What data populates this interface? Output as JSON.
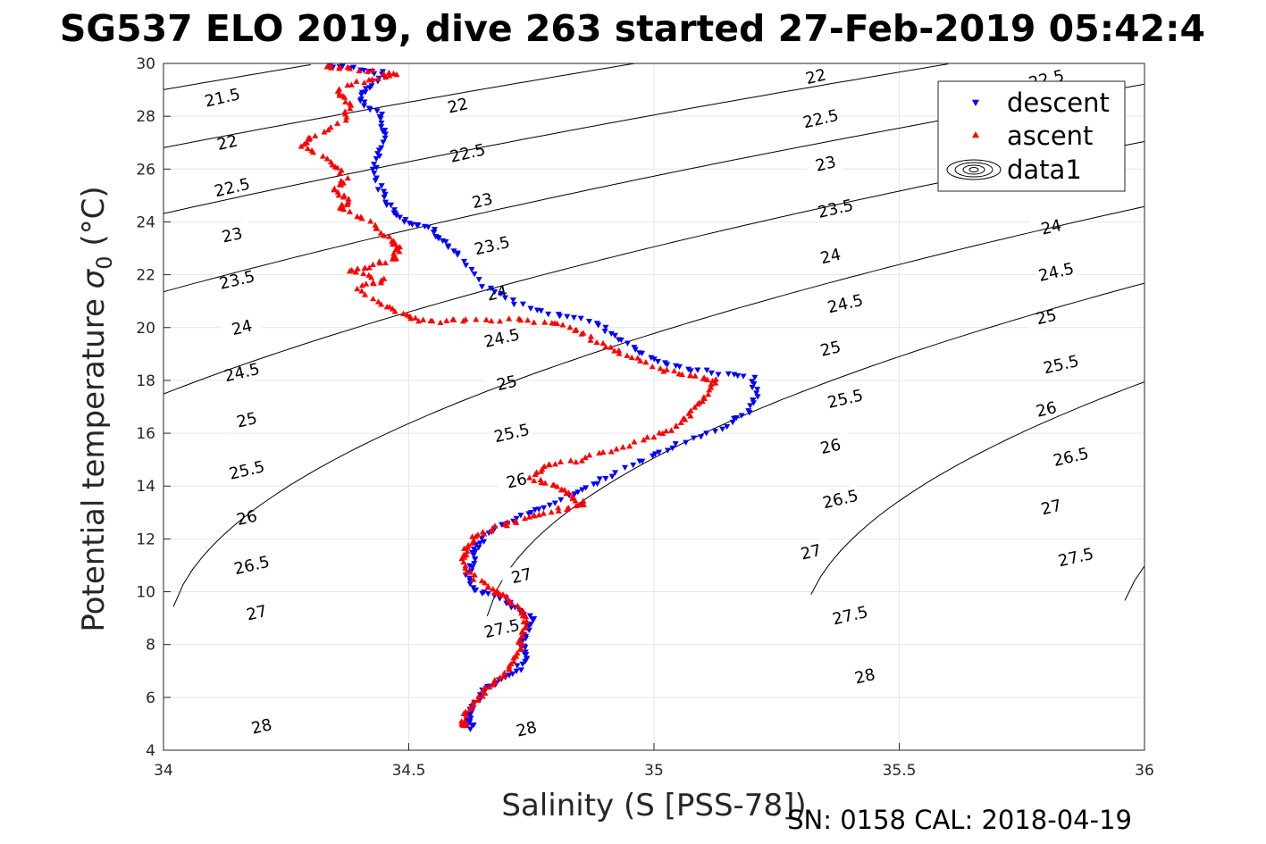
{
  "chart_data": {
    "type": "scatter",
    "title": "SG537 ELO 2019, dive 263 started 27-Feb-2019 05:42:4",
    "xlabel": "Salinity (S [PSS-78])",
    "ylabel": "Potential temperature",
    "ylabel_symbol": "σ",
    "ylabel_subscript": "0",
    "ylabel_unit": "(°C)",
    "xlim": [
      34,
      36
    ],
    "ylim": [
      4,
      30
    ],
    "xticks": [
      "34",
      "34.5",
      "35",
      "35.5",
      "36"
    ],
    "yticks": [
      "4",
      "6",
      "8",
      "10",
      "12",
      "14",
      "16",
      "18",
      "20",
      "22",
      "24",
      "26",
      "28",
      "30"
    ],
    "grid": true,
    "legend": {
      "placement": "top-right",
      "entries": [
        "descent",
        "ascent",
        "data1"
      ]
    },
    "colors": {
      "descent": "#0000ff",
      "ascent": "#ff0000",
      "contour": "#000000",
      "grid": "#e6e6e6"
    },
    "series": [
      {
        "name": "descent",
        "marker": "triangle-down",
        "profile": [
          [
            34.34,
            29.9
          ],
          [
            34.4,
            29.8
          ],
          [
            34.45,
            29.6
          ],
          [
            34.42,
            29.1
          ],
          [
            34.4,
            28.6
          ],
          [
            34.44,
            28.1
          ],
          [
            34.45,
            27.4
          ],
          [
            34.44,
            26.6
          ],
          [
            34.43,
            25.8
          ],
          [
            34.45,
            25.0
          ],
          [
            34.47,
            24.4
          ],
          [
            34.5,
            24.0
          ],
          [
            34.55,
            23.7
          ],
          [
            34.57,
            23.3
          ],
          [
            34.6,
            22.7
          ],
          [
            34.65,
            21.6
          ],
          [
            34.72,
            20.9
          ],
          [
            34.8,
            20.5
          ],
          [
            34.88,
            20.2
          ],
          [
            34.93,
            19.6
          ],
          [
            34.98,
            19.0
          ],
          [
            35.04,
            18.5
          ],
          [
            35.12,
            18.3
          ],
          [
            35.2,
            18.1
          ],
          [
            35.21,
            17.4
          ],
          [
            35.19,
            16.8
          ],
          [
            35.14,
            16.2
          ],
          [
            35.05,
            15.6
          ],
          [
            34.98,
            15.0
          ],
          [
            34.9,
            14.3
          ],
          [
            34.85,
            13.8
          ],
          [
            34.78,
            13.2
          ],
          [
            34.72,
            12.8
          ],
          [
            34.66,
            12.2
          ],
          [
            34.64,
            11.7
          ],
          [
            34.63,
            11.2
          ],
          [
            34.62,
            10.6
          ],
          [
            34.64,
            10.0
          ],
          [
            34.69,
            9.8
          ],
          [
            34.72,
            9.4
          ],
          [
            34.75,
            9.0
          ],
          [
            34.74,
            8.5
          ],
          [
            34.73,
            8.0
          ],
          [
            34.74,
            7.5
          ],
          [
            34.72,
            7.0
          ],
          [
            34.68,
            6.6
          ],
          [
            34.65,
            6.2
          ],
          [
            34.63,
            5.6
          ],
          [
            34.62,
            5.1
          ],
          [
            34.63,
            4.8
          ]
        ]
      },
      {
        "name": "ascent",
        "marker": "triangle-up",
        "profile": [
          [
            34.33,
            29.9
          ],
          [
            34.38,
            29.8
          ],
          [
            34.48,
            29.6
          ],
          [
            34.42,
            29.4
          ],
          [
            34.35,
            29.0
          ],
          [
            34.38,
            28.5
          ],
          [
            34.37,
            27.8
          ],
          [
            34.3,
            27.2
          ],
          [
            34.28,
            26.9
          ],
          [
            34.34,
            26.3
          ],
          [
            34.37,
            25.7
          ],
          [
            34.35,
            25.2
          ],
          [
            34.38,
            24.8
          ],
          [
            34.36,
            24.5
          ],
          [
            34.42,
            24.0
          ],
          [
            34.46,
            23.4
          ],
          [
            34.48,
            23.0
          ],
          [
            34.47,
            22.6
          ],
          [
            34.42,
            22.3
          ],
          [
            34.38,
            22.1
          ],
          [
            34.45,
            21.8
          ],
          [
            34.4,
            21.5
          ],
          [
            34.45,
            20.8
          ],
          [
            34.5,
            20.4
          ],
          [
            34.55,
            20.2
          ],
          [
            34.62,
            20.3
          ],
          [
            34.72,
            20.3
          ],
          [
            34.8,
            20.2
          ],
          [
            34.85,
            19.8
          ],
          [
            34.9,
            19.3
          ],
          [
            34.95,
            18.9
          ],
          [
            35.02,
            18.4
          ],
          [
            35.08,
            18.2
          ],
          [
            35.13,
            18.0
          ],
          [
            35.1,
            17.4
          ],
          [
            35.08,
            16.9
          ],
          [
            35.05,
            16.3
          ],
          [
            35.0,
            15.9
          ],
          [
            34.92,
            15.4
          ],
          [
            34.85,
            15.0
          ],
          [
            34.78,
            14.8
          ],
          [
            34.75,
            14.3
          ],
          [
            34.8,
            14.0
          ],
          [
            34.83,
            13.7
          ],
          [
            34.86,
            13.3
          ],
          [
            34.8,
            13.1
          ],
          [
            34.74,
            12.8
          ],
          [
            34.69,
            12.5
          ],
          [
            34.64,
            12.2
          ],
          [
            34.62,
            11.7
          ],
          [
            34.61,
            11.2
          ],
          [
            34.63,
            10.6
          ],
          [
            34.67,
            10.1
          ],
          [
            34.7,
            9.8
          ],
          [
            34.73,
            9.3
          ],
          [
            34.74,
            8.7
          ],
          [
            34.73,
            8.2
          ],
          [
            34.72,
            7.6
          ],
          [
            34.7,
            7.0
          ],
          [
            34.67,
            6.5
          ],
          [
            34.64,
            6.0
          ],
          [
            34.62,
            5.5
          ],
          [
            34.61,
            5.0
          ],
          [
            34.62,
            4.9
          ]
        ]
      }
    ],
    "contours": [
      {
        "label": "21.5",
        "label_positions": [
          [
            34.12,
            28.7
          ]
        ]
      },
      {
        "label": "22",
        "label_positions": [
          [
            34.13,
            27.0
          ],
          [
            34.6,
            28.4
          ],
          [
            35.33,
            29.5
          ]
        ]
      },
      {
        "label": "22.5",
        "label_positions": [
          [
            34.14,
            25.3
          ],
          [
            34.62,
            26.6
          ],
          [
            35.34,
            27.9
          ],
          [
            35.8,
            29.4
          ]
        ]
      },
      {
        "label": "23",
        "label_positions": [
          [
            34.14,
            23.5
          ],
          [
            34.65,
            24.8
          ],
          [
            35.35,
            26.2
          ]
        ]
      },
      {
        "label": "23.5",
        "label_positions": [
          [
            34.15,
            21.8
          ],
          [
            34.67,
            23.1
          ],
          [
            35.37,
            24.5
          ]
        ]
      },
      {
        "label": "24",
        "label_positions": [
          [
            34.16,
            20.0
          ],
          [
            34.68,
            21.3
          ],
          [
            35.36,
            22.7
          ],
          [
            35.81,
            23.8
          ]
        ]
      },
      {
        "label": "24.5",
        "label_positions": [
          [
            34.16,
            18.3
          ],
          [
            34.69,
            19.6
          ],
          [
            35.39,
            20.9
          ],
          [
            35.82,
            22.1
          ]
        ]
      },
      {
        "label": "25",
        "label_positions": [
          [
            34.17,
            16.5
          ],
          [
            34.7,
            17.9
          ],
          [
            35.36,
            19.2
          ],
          [
            35.8,
            20.4
          ]
        ]
      },
      {
        "label": "25.5",
        "label_positions": [
          [
            34.17,
            14.6
          ],
          [
            34.71,
            16.0
          ],
          [
            35.39,
            17.3
          ],
          [
            35.83,
            18.6
          ]
        ]
      },
      {
        "label": "26",
        "label_positions": [
          [
            34.17,
            12.8
          ],
          [
            34.72,
            14.2
          ],
          [
            35.36,
            15.5
          ],
          [
            35.8,
            16.9
          ]
        ]
      },
      {
        "label": "26.5",
        "label_positions": [
          [
            34.18,
            11.0
          ],
          [
            35.38,
            13.5
          ],
          [
            35.85,
            15.1
          ]
        ]
      },
      {
        "label": "27",
        "label_positions": [
          [
            34.19,
            9.2
          ],
          [
            34.73,
            10.6
          ],
          [
            35.32,
            11.5
          ],
          [
            35.81,
            13.2
          ]
        ]
      },
      {
        "label": "27.5",
        "label_positions": [
          [
            34.69,
            8.6
          ],
          [
            35.4,
            9.1
          ],
          [
            35.86,
            11.3
          ]
        ]
      },
      {
        "label": "28",
        "label_positions": [
          [
            34.2,
            4.9
          ],
          [
            34.74,
            4.8
          ],
          [
            35.43,
            6.8
          ]
        ]
      }
    ],
    "footer": "SN: 0158  CAL: 2018-04-19"
  }
}
